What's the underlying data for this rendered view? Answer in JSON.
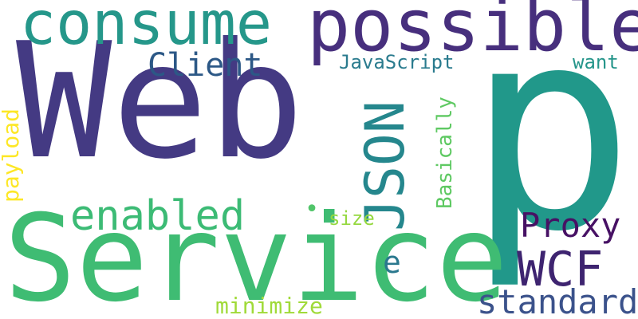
{
  "word_cloud": {
    "background": "#ffffff",
    "words": {
      "web": {
        "text": "Web",
        "color": "#443a83",
        "orientation": "horizontal"
      },
      "p": {
        "text": "p",
        "color": "#21988a",
        "orientation": "horizontal"
      },
      "service": {
        "text": "Service",
        "color": "#3fbc73",
        "orientation": "horizontal"
      },
      "consume": {
        "text": "consume",
        "color": "#25978a",
        "orientation": "horizontal"
      },
      "possible": {
        "text": "possible",
        "color": "#472f7d",
        "orientation": "horizontal"
      },
      "client": {
        "text": "Client",
        "color": "#2c5886",
        "orientation": "horizontal"
      },
      "javascript": {
        "text": "JavaScript",
        "color": "#2a7b8e",
        "orientation": "horizontal"
      },
      "want": {
        "text": "want",
        "color": "#25958a",
        "orientation": "horizontal"
      },
      "json": {
        "text": "JSON",
        "color": "#25878d",
        "orientation": "vertical"
      },
      "basically": {
        "text": "Basically",
        "color": "#5ec962",
        "orientation": "vertical"
      },
      "payload": {
        "text": "payload",
        "color": "#fde725",
        "orientation": "vertical"
      },
      "enabled": {
        "text": "enabled",
        "color": "#3cbb75",
        "orientation": "horizontal"
      },
      "dot": {
        "text": "•",
        "color": "#51c56a",
        "orientation": "horizontal"
      },
      "size": {
        "text": "size",
        "color": "#95d840",
        "orientation": "horizontal"
      },
      "proxy": {
        "text": "Proxy",
        "color": "#471164",
        "orientation": "horizontal"
      },
      "e": {
        "text": "e",
        "color": "#2a788e",
        "orientation": "horizontal"
      },
      "wcf": {
        "text": "WCF",
        "color": "#3e2470",
        "orientation": "horizontal"
      },
      "standard": {
        "text": "standard",
        "color": "#3b528b",
        "orientation": "horizontal"
      },
      "minimize": {
        "text": "minimize",
        "color": "#a0da39",
        "orientation": "horizontal"
      }
    }
  }
}
